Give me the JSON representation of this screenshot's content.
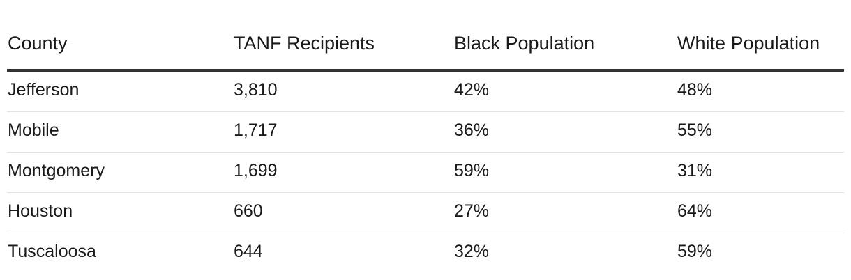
{
  "table": {
    "headers": [
      "County",
      "TANF Recipients",
      "Black Population",
      "White Population"
    ],
    "rows": [
      [
        "Jefferson",
        "3,810",
        "42%",
        "48%"
      ],
      [
        "Mobile",
        "1,717",
        "36%",
        "55%"
      ],
      [
        "Montgomery",
        "1,699",
        "59%",
        "31%"
      ],
      [
        "Houston",
        "660",
        "27%",
        "64%"
      ],
      [
        "Tuscaloosa",
        "644",
        "32%",
        "59%"
      ]
    ]
  }
}
